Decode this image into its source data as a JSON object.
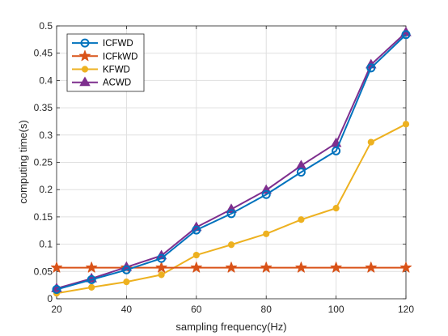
{
  "chart_data": {
    "type": "line",
    "xlabel": "sampling frequency(Hz)",
    "ylabel": "computing time(s)",
    "xlim": [
      20,
      120
    ],
    "ylim": [
      0,
      0.5
    ],
    "xticks": [
      20,
      40,
      60,
      80,
      100,
      120
    ],
    "yticks": [
      0,
      0.05,
      0.1,
      0.15,
      0.2,
      0.25,
      0.3,
      0.35,
      0.4,
      0.45,
      0.5
    ],
    "grid": true,
    "legend_position": "top-left",
    "x": [
      20,
      30,
      40,
      50,
      60,
      70,
      80,
      90,
      100,
      110,
      120
    ],
    "series": [
      {
        "name": "ICFWD",
        "color": "#0072BD",
        "marker": "circle",
        "values": [
          0.017,
          0.035,
          0.053,
          0.074,
          0.126,
          0.156,
          0.191,
          0.232,
          0.271,
          0.423,
          0.484
        ]
      },
      {
        "name": "ICFkWD",
        "color": "#D95319",
        "marker": "star",
        "values": [
          0.057,
          0.057,
          0.057,
          0.057,
          0.057,
          0.057,
          0.057,
          0.057,
          0.057,
          0.057,
          0.057
        ]
      },
      {
        "name": "KFWD",
        "color": "#EDB120",
        "marker": "dot",
        "values": [
          0.01,
          0.021,
          0.031,
          0.044,
          0.08,
          0.099,
          0.119,
          0.145,
          0.166,
          0.287,
          0.32
        ]
      },
      {
        "name": "ACWD",
        "color": "#7E2F8E",
        "marker": "triangle",
        "values": [
          0.019,
          0.037,
          0.058,
          0.079,
          0.131,
          0.164,
          0.199,
          0.244,
          0.285,
          0.429,
          0.488
        ]
      }
    ]
  }
}
